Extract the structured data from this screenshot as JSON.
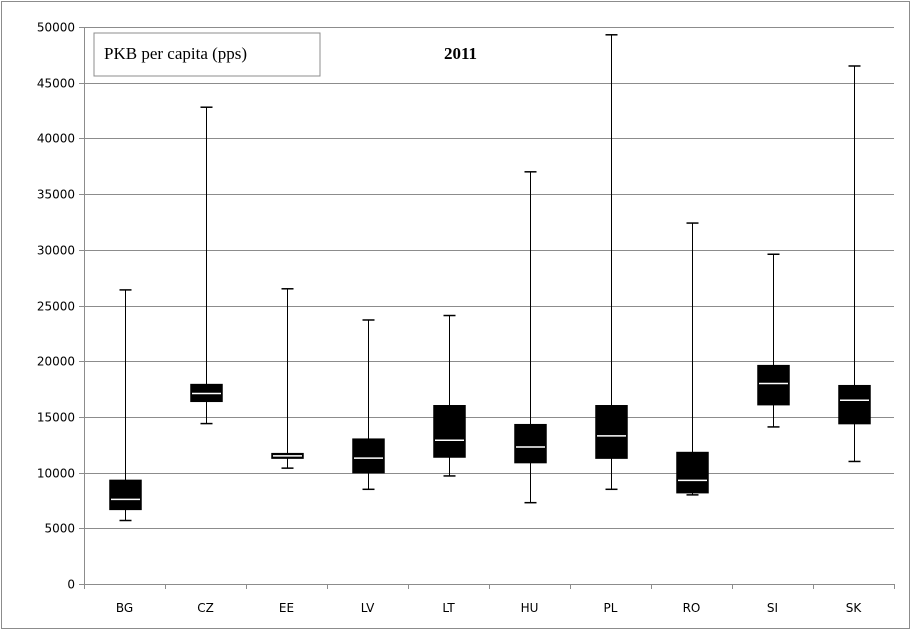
{
  "chart_data": {
    "type": "boxplot",
    "title": "2011",
    "legend": {
      "label": "PKB per capita (pps)",
      "placement": "top-left"
    },
    "xlabel": "",
    "ylabel": "",
    "ylim": [
      0,
      50000
    ],
    "yticks": [
      0,
      5000,
      10000,
      15000,
      20000,
      25000,
      30000,
      35000,
      40000,
      45000,
      50000
    ],
    "grid": true,
    "colors": {
      "box": "#000000",
      "median": "#ffffff",
      "grid": "#8c8c8c",
      "frame": "#8c8c8c"
    },
    "categories": [
      "BG",
      "CZ",
      "EE",
      "LV",
      "LT",
      "HU",
      "PL",
      "RO",
      "SI",
      "SK"
    ],
    "boxes": [
      {
        "min": 5700,
        "q1": 6700,
        "median": 7600,
        "q3": 9300,
        "max": 26400
      },
      {
        "min": 14400,
        "q1": 16400,
        "median": 17100,
        "q3": 17900,
        "max": 42800
      },
      {
        "min": 10400,
        "q1": 11300,
        "median": 11500,
        "q3": 11700,
        "max": 26500
      },
      {
        "min": 8500,
        "q1": 10000,
        "median": 11300,
        "q3": 13000,
        "max": 23700
      },
      {
        "min": 9700,
        "q1": 11400,
        "median": 12900,
        "q3": 16000,
        "max": 24100
      },
      {
        "min": 7300,
        "q1": 10900,
        "median": 12300,
        "q3": 14300,
        "max": 37000
      },
      {
        "min": 8500,
        "q1": 11300,
        "median": 13300,
        "q3": 16000,
        "max": 49300
      },
      {
        "min": 8000,
        "q1": 8200,
        "median": 9300,
        "q3": 11800,
        "max": 32400
      },
      {
        "min": 14100,
        "q1": 16100,
        "median": 18000,
        "q3": 19600,
        "max": 29600
      },
      {
        "min": 11000,
        "q1": 14400,
        "median": 16500,
        "q3": 17800,
        "max": 46500
      }
    ]
  }
}
